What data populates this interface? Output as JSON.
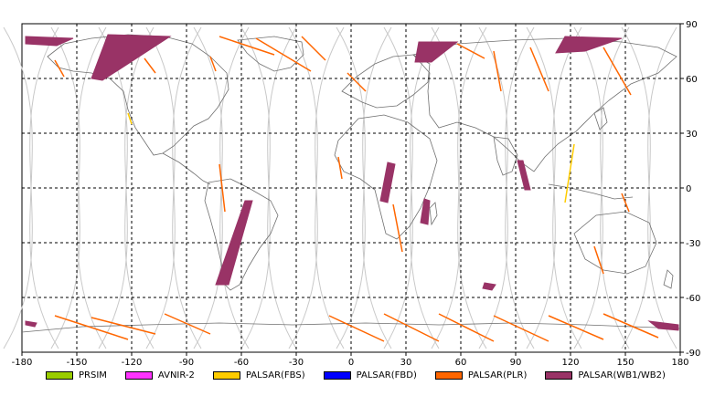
{
  "map": {
    "lon_range": [
      -180,
      180
    ],
    "lat_range": [
      -90,
      90
    ],
    "grid": true,
    "x_ticks": [
      -180,
      -150,
      -120,
      -90,
      -60,
      -30,
      0,
      30,
      60,
      90,
      120,
      150,
      180
    ],
    "y_ticks": [
      90,
      60,
      30,
      0,
      -30,
      -60,
      -90
    ],
    "x_tick_labels": [
      "-180",
      "-150",
      "-120",
      "-90",
      "-60",
      "-30",
      "0",
      "30",
      "60",
      "90",
      "120",
      "150",
      "180"
    ],
    "y_tick_labels": [
      "90",
      "60",
      "30",
      "0",
      "-30",
      "-60",
      "-90"
    ]
  },
  "legend": [
    {
      "label": "PRSIM",
      "color": "#99cc00"
    },
    {
      "label": "AVNIR-2",
      "color": "#ff33ff"
    },
    {
      "label": "PALSAR(FBS)",
      "color": "#ffcc00"
    },
    {
      "label": "PALSAR(FBD)",
      "color": "#0000ff"
    },
    {
      "label": "PALSAR(PLR)",
      "color": "#ff6600"
    },
    {
      "label": "PALSAR(WB1/WB2)",
      "color": "#993366"
    }
  ]
}
